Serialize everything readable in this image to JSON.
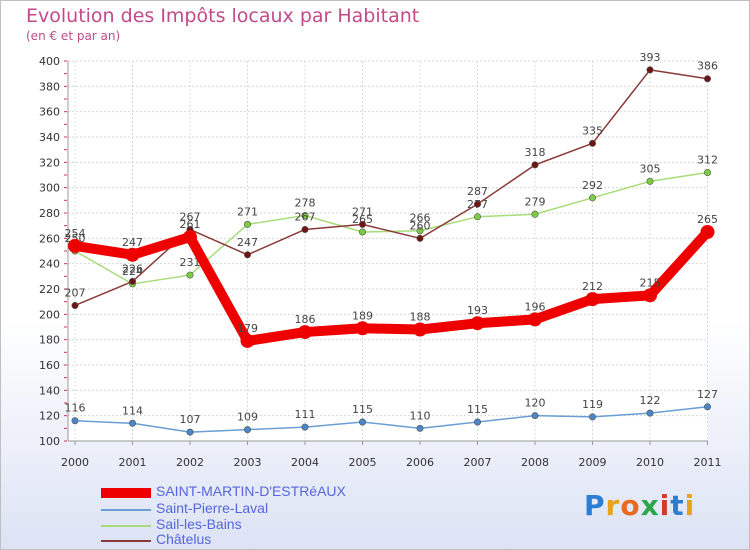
{
  "header": {
    "title": "Evolution des Impôts locaux par Habitant",
    "subtitle": "(en € et par an)"
  },
  "logo": {
    "text": "Proxiti",
    "letters": [
      "P",
      "r",
      "o",
      "x",
      "i",
      "t",
      "i"
    ],
    "colors": [
      "#2a7fd4",
      "#e8a21c",
      "#e86a1c",
      "#2aa84a",
      "#d43a2a",
      "#2a7fd4",
      "#e8a21c"
    ]
  },
  "chart_data": {
    "type": "line",
    "title": "Evolution des Impôts locaux par Habitant",
    "subtitle": "(en € et par an)",
    "xlabel": "",
    "ylabel": "",
    "categories": [
      "2000",
      "2001",
      "2002",
      "2003",
      "2004",
      "2005",
      "2006",
      "2007",
      "2008",
      "2009",
      "2010",
      "2011"
    ],
    "ylim": [
      100,
      400
    ],
    "yticks": [
      100,
      120,
      140,
      160,
      180,
      200,
      220,
      240,
      260,
      280,
      300,
      320,
      340,
      360,
      380,
      400
    ],
    "grid": true,
    "series": [
      {
        "name": "SAINT-MARTIN-D'ESTRéAUX",
        "color": "#ee0000",
        "markerColor": "#ee0000",
        "emphasis": true,
        "values": [
          254,
          247,
          261,
          179,
          186,
          189,
          188,
          193,
          196,
          212,
          215,
          265
        ]
      },
      {
        "name": "Saint-Pierre-Laval",
        "color": "#6a9ed4",
        "markerColor": "#4a86c8",
        "emphasis": false,
        "values": [
          116,
          114,
          107,
          109,
          111,
          115,
          110,
          115,
          120,
          119,
          122,
          127
        ]
      },
      {
        "name": "Sail-les-Bains",
        "color": "#a8dc7a",
        "markerColor": "#7ccc40",
        "emphasis": false,
        "values": [
          250,
          224,
          231,
          271,
          278,
          265,
          266,
          277,
          279,
          292,
          305,
          312
        ]
      },
      {
        "name": "Châtelus",
        "color": "#8b3a3a",
        "markerColor": "#6e1414",
        "emphasis": false,
        "values": [
          207,
          226,
          267,
          247,
          267,
          271,
          260,
          287,
          318,
          335,
          393,
          386
        ]
      }
    ]
  }
}
